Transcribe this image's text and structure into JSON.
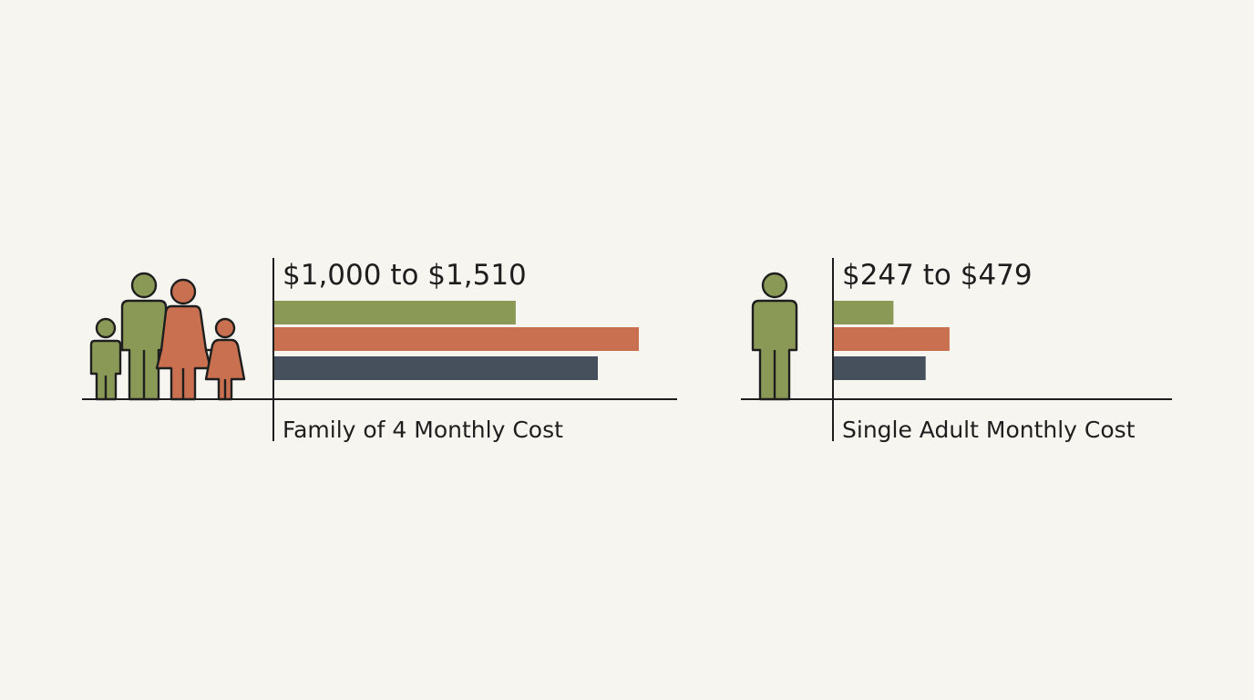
{
  "colors": {
    "background": "#f6f5f0",
    "green": "#8a9a56",
    "terracotta": "#c8704f",
    "slate": "#464f5c",
    "ink": "#1e1e1e"
  },
  "chart_data": [
    {
      "type": "bar",
      "orientation": "horizontal",
      "range_label": "$1,000 to $1,510",
      "caption": "Family of 4 Monthly Cost",
      "icon": "family-icon",
      "series_colors": [
        "#8a9a56",
        "#c8704f",
        "#464f5c"
      ],
      "values": [
        1000,
        1510,
        1340
      ],
      "xlim": [
        0,
        1510
      ]
    },
    {
      "type": "bar",
      "orientation": "horizontal",
      "range_label": "$247 to $479",
      "caption": "Single Adult Monthly Cost",
      "icon": "single-adult-icon",
      "series_colors": [
        "#8a9a56",
        "#c8704f",
        "#464f5c"
      ],
      "values": [
        247,
        479,
        380
      ],
      "xlim": [
        0,
        1510
      ]
    }
  ]
}
